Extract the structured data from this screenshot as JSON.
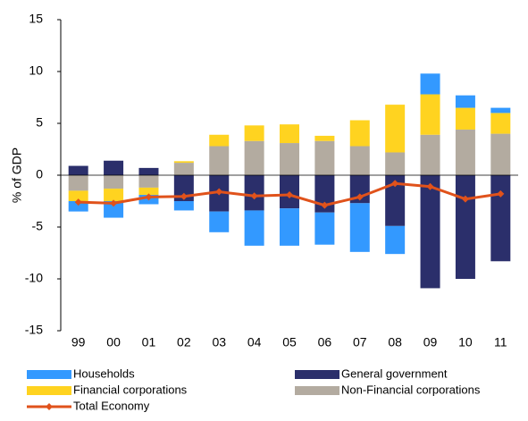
{
  "chart_data": {
    "type": "bar",
    "stacked": true,
    "y_label": "% of GDP",
    "categories": [
      "99",
      "00",
      "01",
      "02",
      "03",
      "04",
      "05",
      "06",
      "07",
      "08",
      "09",
      "10",
      "11"
    ],
    "series": [
      {
        "name": "Households",
        "color": "#3399ff",
        "values": [
          -1.0,
          -1.6,
          -0.9,
          -0.9,
          -2.0,
          -3.4,
          -3.6,
          -3.1,
          -4.7,
          -2.7,
          2.0,
          1.2,
          0.5
        ]
      },
      {
        "name": "General government",
        "color": "#2b2f6b",
        "values": [
          0.9,
          1.4,
          0.7,
          -2.5,
          -3.5,
          -3.4,
          -3.2,
          -3.6,
          -2.7,
          -4.9,
          -10.9,
          -10.0,
          -8.3
        ]
      },
      {
        "name": "Financial corporations",
        "color": "#ffd320",
        "values": [
          -1.0,
          -1.2,
          -0.7,
          0.15,
          1.1,
          1.5,
          1.8,
          0.5,
          2.5,
          4.6,
          3.9,
          2.1,
          2.0
        ]
      },
      {
        "name": "Non-Financial corporations",
        "color": "#b3aba0",
        "values": [
          -1.5,
          -1.3,
          -1.2,
          1.2,
          2.8,
          3.3,
          3.1,
          3.3,
          2.8,
          2.2,
          3.9,
          4.4,
          4.0
        ]
      },
      {
        "name": "Total Economy",
        "type": "line",
        "color": "#e0521b",
        "values": [
          -2.6,
          -2.7,
          -2.1,
          -2.05,
          -1.6,
          -2.0,
          -1.9,
          -2.9,
          -2.1,
          -0.8,
          -1.1,
          -2.3,
          -1.8
        ]
      }
    ],
    "ylim": [
      -15,
      15
    ],
    "yticks": [
      -15,
      -10,
      -5,
      0,
      5,
      10,
      15
    ],
    "grid": false
  }
}
